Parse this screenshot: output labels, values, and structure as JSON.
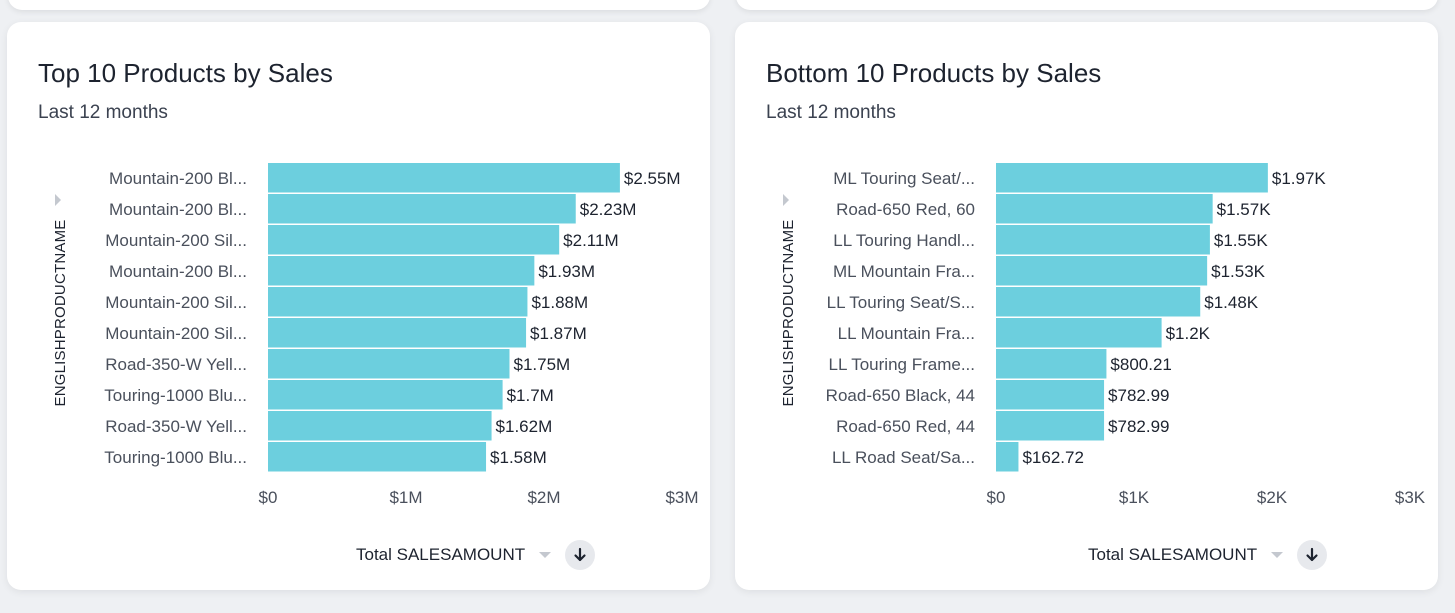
{
  "cards": [
    {
      "title": "Top 10 Products by Sales",
      "subtitle": "Last 12 months",
      "sort": {
        "label": "Total SALESAMOUNT",
        "icon": "arrow-down-icon"
      }
    },
    {
      "title": "Bottom 10 Products by Sales",
      "subtitle": "Last 12 months",
      "sort": {
        "label": "Total SALESAMOUNT",
        "icon": "arrow-down-icon"
      }
    }
  ],
  "colors": {
    "bar": "#6ccfde",
    "text": "#1d232f",
    "axis_text": "#4a505c",
    "background": "#eef0f3"
  },
  "chart_data": [
    {
      "type": "bar",
      "orientation": "horizontal",
      "title": "Top 10 Products by Sales",
      "subtitle": "Last 12 months",
      "ylabel": "ENGLISHPRODUCTNAME",
      "xlabel": "Total SALESAMOUNT",
      "xlim": [
        0,
        3000000
      ],
      "xticks": [
        "$0",
        "$1M",
        "$2M",
        "$3M"
      ],
      "categories": [
        "Mountain-200 Bl...",
        "Mountain-200 Bl...",
        "Mountain-200 Sil...",
        "Mountain-200 Bl...",
        "Mountain-200 Sil...",
        "Mountain-200 Sil...",
        "Road-350-W Yell...",
        "Touring-1000 Blu...",
        "Road-350-W Yell...",
        "Touring-1000 Blu..."
      ],
      "values": [
        2550000,
        2230000,
        2110000,
        1930000,
        1880000,
        1870000,
        1750000,
        1700000,
        1620000,
        1580000
      ],
      "value_labels": [
        "$2.55M",
        "$2.23M",
        "$2.11M",
        "$1.93M",
        "$1.88M",
        "$1.87M",
        "$1.75M",
        "$1.7M",
        "$1.62M",
        "$1.58M"
      ],
      "grid": false,
      "legend": "none"
    },
    {
      "type": "bar",
      "orientation": "horizontal",
      "title": "Bottom 10 Products by Sales",
      "subtitle": "Last 12 months",
      "ylabel": "ENGLISHPRODUCTNAME",
      "xlabel": "Total SALESAMOUNT",
      "xlim": [
        0,
        3000
      ],
      "xticks": [
        "$0",
        "$1K",
        "$2K",
        "$3K"
      ],
      "categories": [
        "ML Touring Seat/...",
        "Road-650 Red, 60",
        "LL Touring Handl...",
        "ML Mountain Fra...",
        "LL Touring Seat/S...",
        "LL Mountain Fra...",
        "LL Touring Frame...",
        "Road-650 Black, 44",
        "Road-650 Red, 44",
        "LL Road Seat/Sa..."
      ],
      "values": [
        1970,
        1570,
        1550,
        1530,
        1480,
        1200,
        800.21,
        782.99,
        782.99,
        162.72
      ],
      "value_labels": [
        "$1.97K",
        "$1.57K",
        "$1.55K",
        "$1.53K",
        "$1.48K",
        "$1.2K",
        "$800.21",
        "$782.99",
        "$782.99",
        "$162.72"
      ],
      "grid": false,
      "legend": "none"
    }
  ]
}
